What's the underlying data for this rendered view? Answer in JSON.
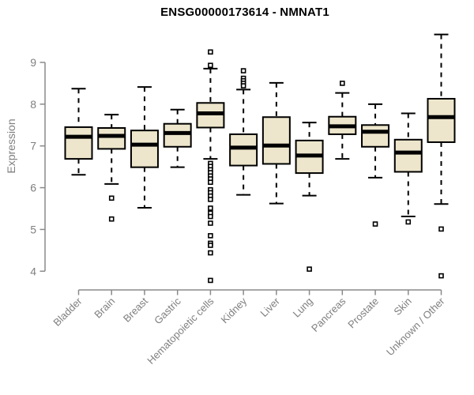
{
  "title": "ENSG00000173614 - NMNAT1",
  "colors": {
    "background": "#ffffff",
    "box_fill": "#ede6cc",
    "box_line": "#000000",
    "axis": "#8a8a8a",
    "tick_label": "#7f7f7f",
    "title": "#000000"
  },
  "chart_data": {
    "type": "boxplot",
    "title": "ENSG00000173614 - NMNAT1",
    "ylabel": "Expression",
    "xlabel": "",
    "ylim": [
      3.6,
      9.8
    ],
    "yticks": [
      4,
      5,
      6,
      7,
      8,
      9
    ],
    "grid": false,
    "legend": false,
    "categories": [
      "Bladder",
      "Brain",
      "Breast",
      "Gastric",
      "Hematopoietic cells",
      "Kidney",
      "Liver",
      "Lung",
      "Pancreas",
      "Prostate",
      "Skin",
      "Unknown / Other"
    ],
    "series": [
      {
        "label": "Bladder",
        "whisker_low": 6.31,
        "q1": 6.69,
        "median": 7.22,
        "q3": 7.45,
        "whisker_high": 8.37,
        "outliers": []
      },
      {
        "label": "Brain",
        "whisker_low": 6.09,
        "q1": 6.93,
        "median": 7.24,
        "q3": 7.43,
        "whisker_high": 7.75,
        "outliers": [
          5.75,
          5.25
        ]
      },
      {
        "label": "Breast",
        "whisker_low": 5.52,
        "q1": 6.49,
        "median": 7.03,
        "q3": 7.37,
        "whisker_high": 8.41,
        "outliers": []
      },
      {
        "label": "Gastric",
        "whisker_low": 6.49,
        "q1": 6.98,
        "median": 7.31,
        "q3": 7.53,
        "whisker_high": 7.87,
        "outliers": []
      },
      {
        "label": "Hematopoietic cells",
        "whisker_low": 6.69,
        "q1": 7.44,
        "median": 7.78,
        "q3": 8.03,
        "whisker_high": 8.85,
        "outliers": [
          9.25,
          8.93,
          6.58,
          6.51,
          6.43,
          6.36,
          6.28,
          6.21,
          6.13,
          5.95,
          5.88,
          5.8,
          5.72,
          5.51,
          5.39,
          5.31,
          5.15,
          4.85,
          4.67,
          4.62,
          4.44,
          3.78
        ]
      },
      {
        "label": "Kidney",
        "whisker_low": 5.83,
        "q1": 6.53,
        "median": 6.96,
        "q3": 7.28,
        "whisker_high": 8.35,
        "outliers": [
          8.8,
          8.62,
          8.56,
          8.5,
          8.44
        ]
      },
      {
        "label": "Liver",
        "whisker_low": 5.62,
        "q1": 6.57,
        "median": 7.01,
        "q3": 7.69,
        "whisker_high": 8.51,
        "outliers": []
      },
      {
        "label": "Lung",
        "whisker_low": 5.81,
        "q1": 6.35,
        "median": 6.77,
        "q3": 7.13,
        "whisker_high": 7.56,
        "outliers": [
          4.05
        ]
      },
      {
        "label": "Pancreas",
        "whisker_low": 6.69,
        "q1": 7.28,
        "median": 7.47,
        "q3": 7.7,
        "whisker_high": 8.27,
        "outliers": [
          8.5
        ]
      },
      {
        "label": "Prostate",
        "whisker_low": 6.24,
        "q1": 6.98,
        "median": 7.34,
        "q3": 7.5,
        "whisker_high": 8.0,
        "outliers": [
          5.13
        ]
      },
      {
        "label": "Skin",
        "whisker_low": 5.31,
        "q1": 6.38,
        "median": 6.84,
        "q3": 7.15,
        "whisker_high": 7.78,
        "outliers": [
          5.18
        ]
      },
      {
        "label": "Unknown / Other",
        "whisker_low": 5.61,
        "q1": 7.09,
        "median": 7.69,
        "q3": 8.13,
        "whisker_high": 9.67,
        "outliers": [
          5.01,
          3.89
        ]
      }
    ]
  }
}
